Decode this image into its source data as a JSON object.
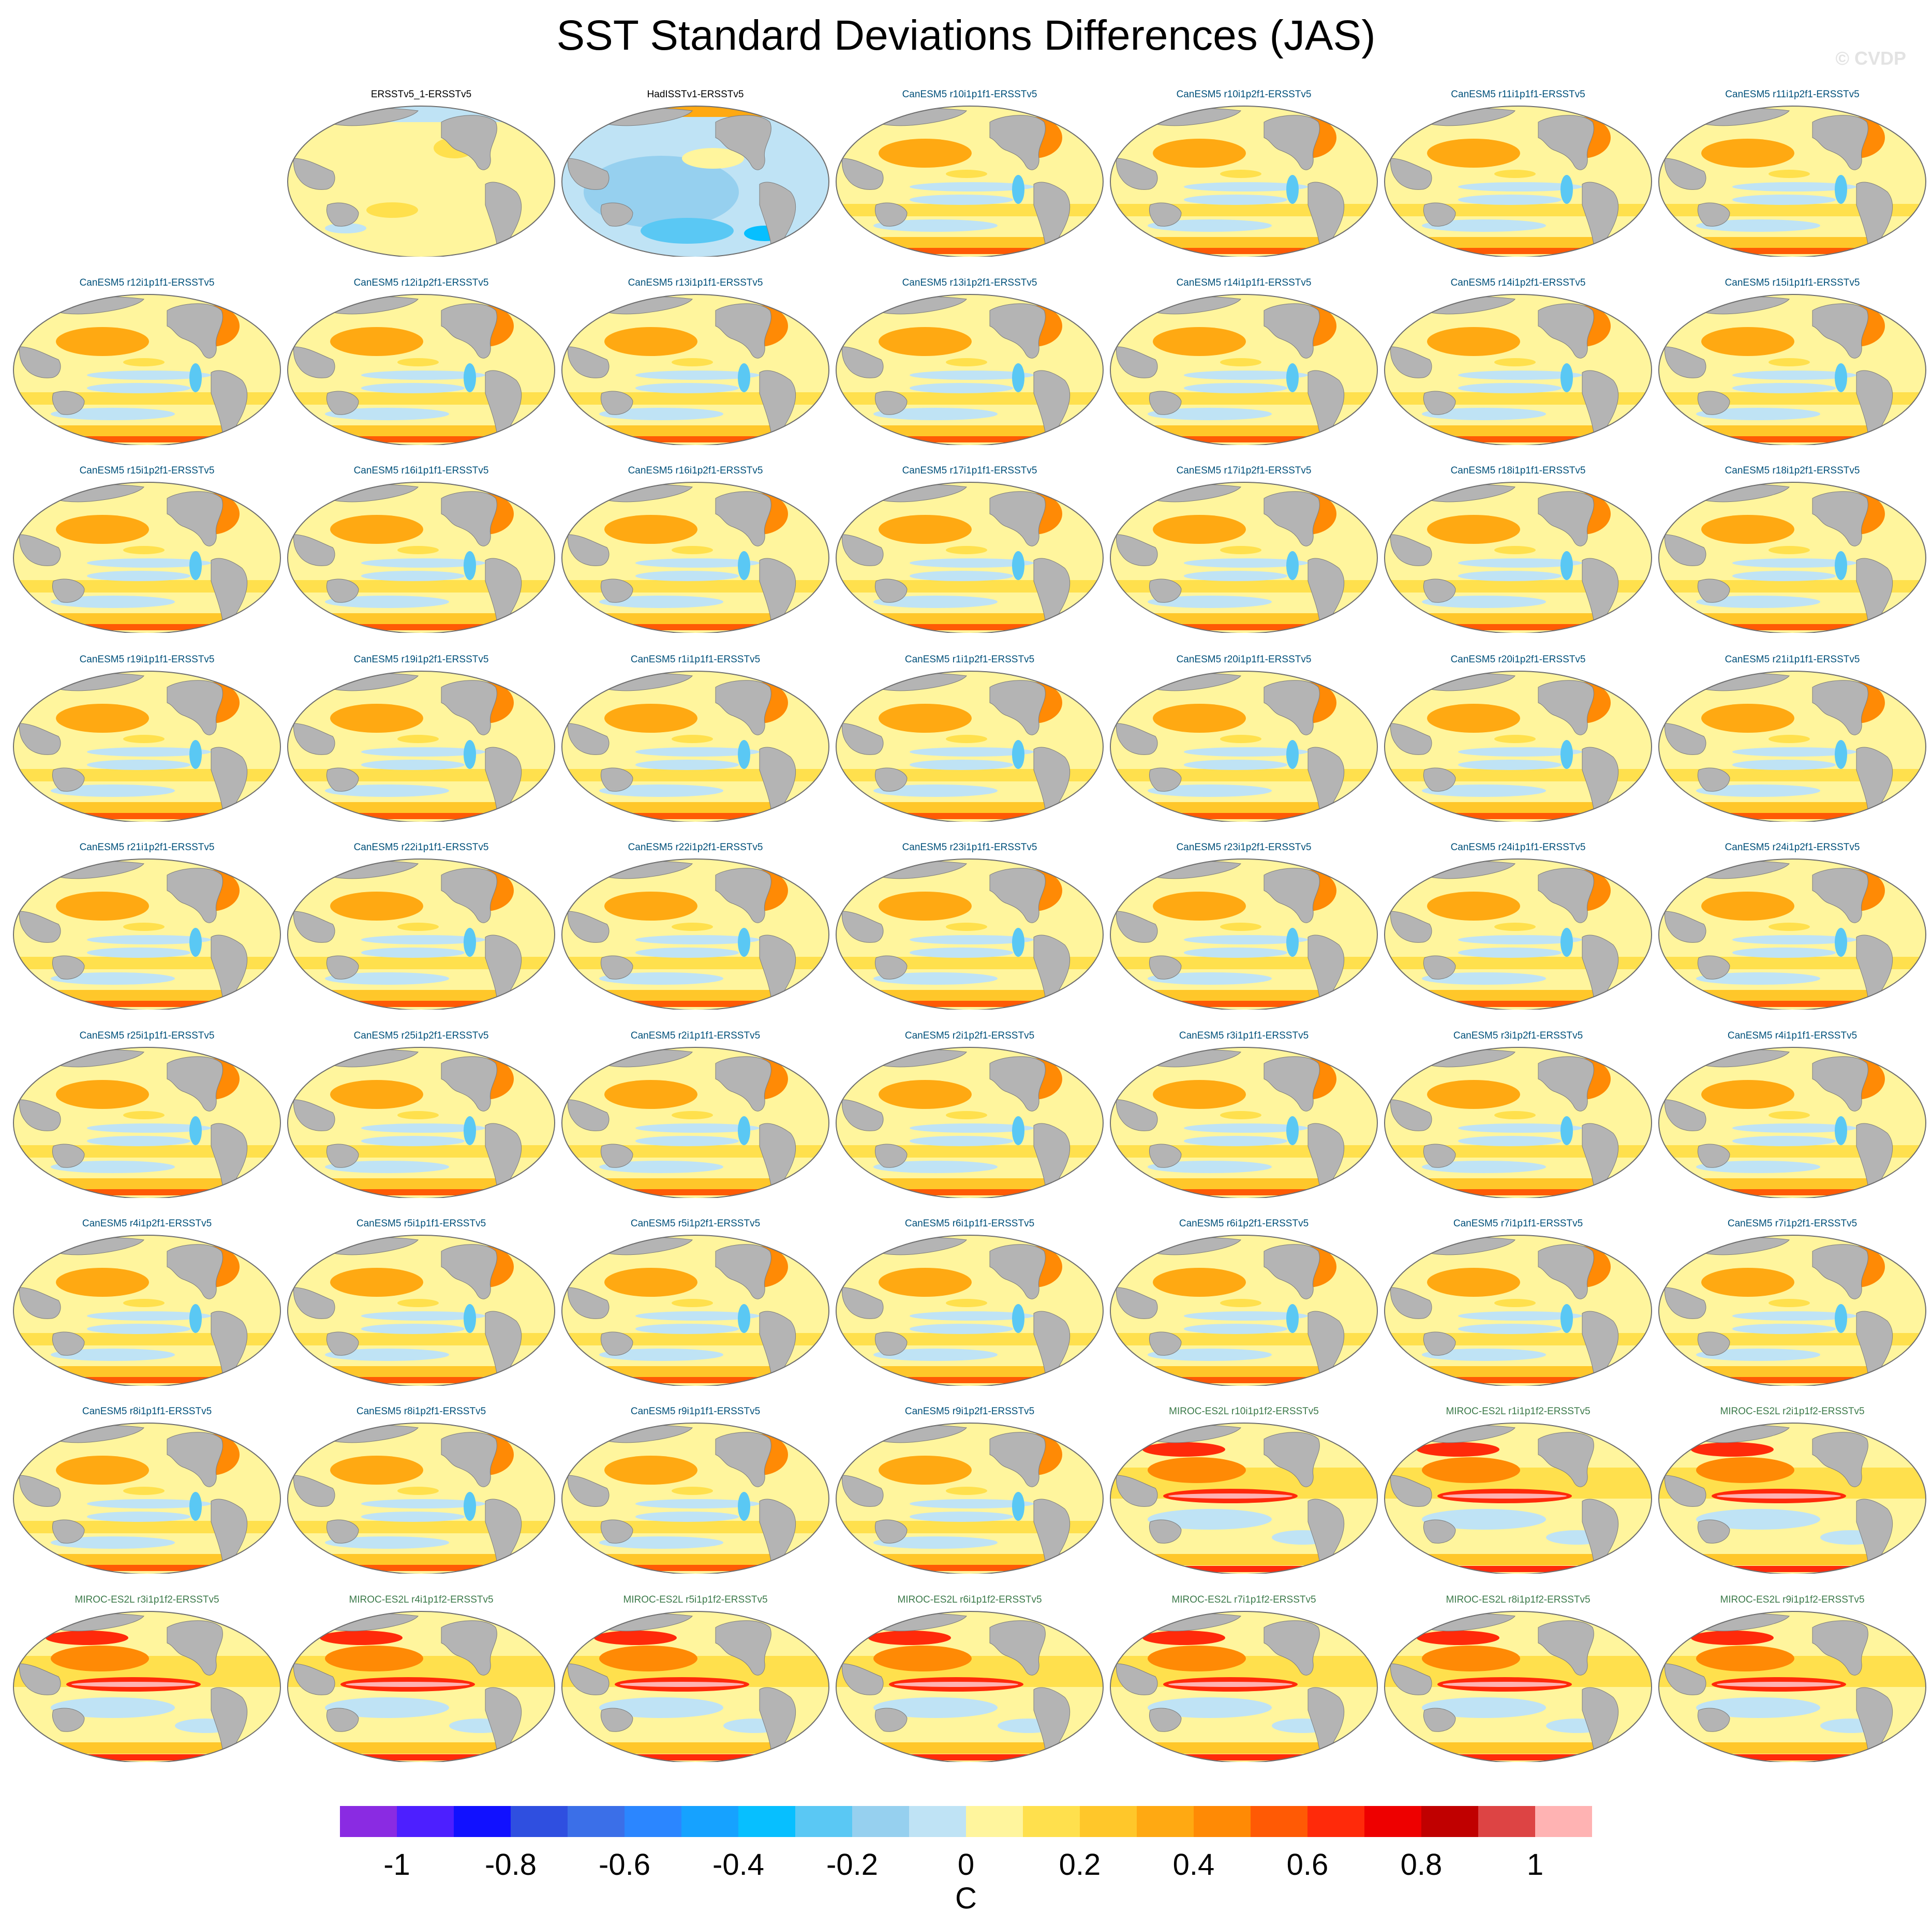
{
  "title": "SST Standard Deviations Differences (JAS)",
  "copyright": "© CVDP",
  "label_colors": {
    "obs": "#000000",
    "CanESM5": "#00507a",
    "MIROC-ES2L": "#3c7a4a"
  },
  "map_colors": {
    "ocean_base": "#fff59d",
    "land": "#b4b4b4",
    "coast": "#7d7d7d",
    "outline": "#6e6e6e"
  },
  "panels": [
    {
      "label": "ERSSTv5_1-ERSSTv5",
      "group": "obs",
      "style": "ersst"
    },
    {
      "label": "HadISSTv1-ERSSTv5",
      "group": "obs",
      "style": "hadisst"
    },
    {
      "label": "CanESM5 r10i1p1f1-ERSSTv5",
      "group": "CanESM5",
      "style": "canesm"
    },
    {
      "label": "CanESM5 r10i1p2f1-ERSSTv5",
      "group": "CanESM5",
      "style": "canesm"
    },
    {
      "label": "CanESM5 r11i1p1f1-ERSSTv5",
      "group": "CanESM5",
      "style": "canesm"
    },
    {
      "label": "CanESM5 r11i1p2f1-ERSSTv5",
      "group": "CanESM5",
      "style": "canesm"
    },
    {
      "label": "CanESM5 r12i1p1f1-ERSSTv5",
      "group": "CanESM5",
      "style": "canesm"
    },
    {
      "label": "CanESM5 r12i1p2f1-ERSSTv5",
      "group": "CanESM5",
      "style": "canesm"
    },
    {
      "label": "CanESM5 r13i1p1f1-ERSSTv5",
      "group": "CanESM5",
      "style": "canesm"
    },
    {
      "label": "CanESM5 r13i1p2f1-ERSSTv5",
      "group": "CanESM5",
      "style": "canesm"
    },
    {
      "label": "CanESM5 r14i1p1f1-ERSSTv5",
      "group": "CanESM5",
      "style": "canesm"
    },
    {
      "label": "CanESM5 r14i1p2f1-ERSSTv5",
      "group": "CanESM5",
      "style": "canesm"
    },
    {
      "label": "CanESM5 r15i1p1f1-ERSSTv5",
      "group": "CanESM5",
      "style": "canesm"
    },
    {
      "label": "CanESM5 r15i1p2f1-ERSSTv5",
      "group": "CanESM5",
      "style": "canesm"
    },
    {
      "label": "CanESM5 r16i1p1f1-ERSSTv5",
      "group": "CanESM5",
      "style": "canesm"
    },
    {
      "label": "CanESM5 r16i1p2f1-ERSSTv5",
      "group": "CanESM5",
      "style": "canesm"
    },
    {
      "label": "CanESM5 r17i1p1f1-ERSSTv5",
      "group": "CanESM5",
      "style": "canesm"
    },
    {
      "label": "CanESM5 r17i1p2f1-ERSSTv5",
      "group": "CanESM5",
      "style": "canesm"
    },
    {
      "label": "CanESM5 r18i1p1f1-ERSSTv5",
      "group": "CanESM5",
      "style": "canesm"
    },
    {
      "label": "CanESM5 r18i1p2f1-ERSSTv5",
      "group": "CanESM5",
      "style": "canesm"
    },
    {
      "label": "CanESM5 r19i1p1f1-ERSSTv5",
      "group": "CanESM5",
      "style": "canesm"
    },
    {
      "label": "CanESM5 r19i1p2f1-ERSSTv5",
      "group": "CanESM5",
      "style": "canesm"
    },
    {
      "label": "CanESM5 r1i1p1f1-ERSSTv5",
      "group": "CanESM5",
      "style": "canesm"
    },
    {
      "label": "CanESM5 r1i1p2f1-ERSSTv5",
      "group": "CanESM5",
      "style": "canesm"
    },
    {
      "label": "CanESM5 r20i1p1f1-ERSSTv5",
      "group": "CanESM5",
      "style": "canesm"
    },
    {
      "label": "CanESM5 r20i1p2f1-ERSSTv5",
      "group": "CanESM5",
      "style": "canesm"
    },
    {
      "label": "CanESM5 r21i1p1f1-ERSSTv5",
      "group": "CanESM5",
      "style": "canesm"
    },
    {
      "label": "CanESM5 r21i1p2f1-ERSSTv5",
      "group": "CanESM5",
      "style": "canesm"
    },
    {
      "label": "CanESM5 r22i1p1f1-ERSSTv5",
      "group": "CanESM5",
      "style": "canesm"
    },
    {
      "label": "CanESM5 r22i1p2f1-ERSSTv5",
      "group": "CanESM5",
      "style": "canesm"
    },
    {
      "label": "CanESM5 r23i1p1f1-ERSSTv5",
      "group": "CanESM5",
      "style": "canesm"
    },
    {
      "label": "CanESM5 r23i1p2f1-ERSSTv5",
      "group": "CanESM5",
      "style": "canesm"
    },
    {
      "label": "CanESM5 r24i1p1f1-ERSSTv5",
      "group": "CanESM5",
      "style": "canesm"
    },
    {
      "label": "CanESM5 r24i1p2f1-ERSSTv5",
      "group": "CanESM5",
      "style": "canesm"
    },
    {
      "label": "CanESM5 r25i1p1f1-ERSSTv5",
      "group": "CanESM5",
      "style": "canesm"
    },
    {
      "label": "CanESM5 r25i1p2f1-ERSSTv5",
      "group": "CanESM5",
      "style": "canesm"
    },
    {
      "label": "CanESM5 r2i1p1f1-ERSSTv5",
      "group": "CanESM5",
      "style": "canesm"
    },
    {
      "label": "CanESM5 r2i1p2f1-ERSSTv5",
      "group": "CanESM5",
      "style": "canesm"
    },
    {
      "label": "CanESM5 r3i1p1f1-ERSSTv5",
      "group": "CanESM5",
      "style": "canesm"
    },
    {
      "label": "CanESM5 r3i1p2f1-ERSSTv5",
      "group": "CanESM5",
      "style": "canesm"
    },
    {
      "label": "CanESM5 r4i1p1f1-ERSSTv5",
      "group": "CanESM5",
      "style": "canesm"
    },
    {
      "label": "CanESM5 r4i1p2f1-ERSSTv5",
      "group": "CanESM5",
      "style": "canesm"
    },
    {
      "label": "CanESM5 r5i1p1f1-ERSSTv5",
      "group": "CanESM5",
      "style": "canesm"
    },
    {
      "label": "CanESM5 r5i1p2f1-ERSSTv5",
      "group": "CanESM5",
      "style": "canesm"
    },
    {
      "label": "CanESM5 r6i1p1f1-ERSSTv5",
      "group": "CanESM5",
      "style": "canesm"
    },
    {
      "label": "CanESM5 r6i1p2f1-ERSSTv5",
      "group": "CanESM5",
      "style": "canesm"
    },
    {
      "label": "CanESM5 r7i1p1f1-ERSSTv5",
      "group": "CanESM5",
      "style": "canesm"
    },
    {
      "label": "CanESM5 r7i1p2f1-ERSSTv5",
      "group": "CanESM5",
      "style": "canesm"
    },
    {
      "label": "CanESM5 r8i1p1f1-ERSSTv5",
      "group": "CanESM5",
      "style": "canesm"
    },
    {
      "label": "CanESM5 r8i1p2f1-ERSSTv5",
      "group": "CanESM5",
      "style": "canesm"
    },
    {
      "label": "CanESM5 r9i1p1f1-ERSSTv5",
      "group": "CanESM5",
      "style": "canesm"
    },
    {
      "label": "CanESM5 r9i1p2f1-ERSSTv5",
      "group": "CanESM5",
      "style": "canesm"
    },
    {
      "label": "MIROC-ES2L r10i1p1f2-ERSSTv5",
      "group": "MIROC-ES2L",
      "style": "miroc"
    },
    {
      "label": "MIROC-ES2L r1i1p1f2-ERSSTv5",
      "group": "MIROC-ES2L",
      "style": "miroc"
    },
    {
      "label": "MIROC-ES2L r2i1p1f2-ERSSTv5",
      "group": "MIROC-ES2L",
      "style": "miroc"
    },
    {
      "label": "MIROC-ES2L r3i1p1f2-ERSSTv5",
      "group": "MIROC-ES2L",
      "style": "miroc"
    },
    {
      "label": "MIROC-ES2L r4i1p1f2-ERSSTv5",
      "group": "MIROC-ES2L",
      "style": "miroc"
    },
    {
      "label": "MIROC-ES2L r5i1p1f2-ERSSTv5",
      "group": "MIROC-ES2L",
      "style": "miroc"
    },
    {
      "label": "MIROC-ES2L r6i1p1f2-ERSSTv5",
      "group": "MIROC-ES2L",
      "style": "miroc"
    },
    {
      "label": "MIROC-ES2L r7i1p1f2-ERSSTv5",
      "group": "MIROC-ES2L",
      "style": "miroc"
    },
    {
      "label": "MIROC-ES2L r8i1p1f2-ERSSTv5",
      "group": "MIROC-ES2L",
      "style": "miroc"
    },
    {
      "label": "MIROC-ES2L r9i1p1f2-ERSSTv5",
      "group": "MIROC-ES2L",
      "style": "miroc"
    }
  ],
  "colorbar": {
    "units": "C",
    "min": -1.1,
    "step": 0.1,
    "colors": [
      "#8a2be2",
      "#4d1fff",
      "#1111ff",
      "#2f4fe0",
      "#3b6fe8",
      "#2b86ff",
      "#16a2ff",
      "#07bfff",
      "#5ac8f4",
      "#96d0ef",
      "#bfe3f5",
      "#fff59d",
      "#ffe04d",
      "#ffc72a",
      "#ffa912",
      "#ff8a05",
      "#ff5a05",
      "#ff2a0a",
      "#ee0000",
      "#c00000",
      "#dd4444",
      "#ffb3b3"
    ],
    "tick_labels": [
      "-1",
      "-0.8",
      "-0.6",
      "-0.4",
      "-0.2",
      "0",
      "0.2",
      "0.4",
      "0.6",
      "0.8",
      "1"
    ]
  }
}
